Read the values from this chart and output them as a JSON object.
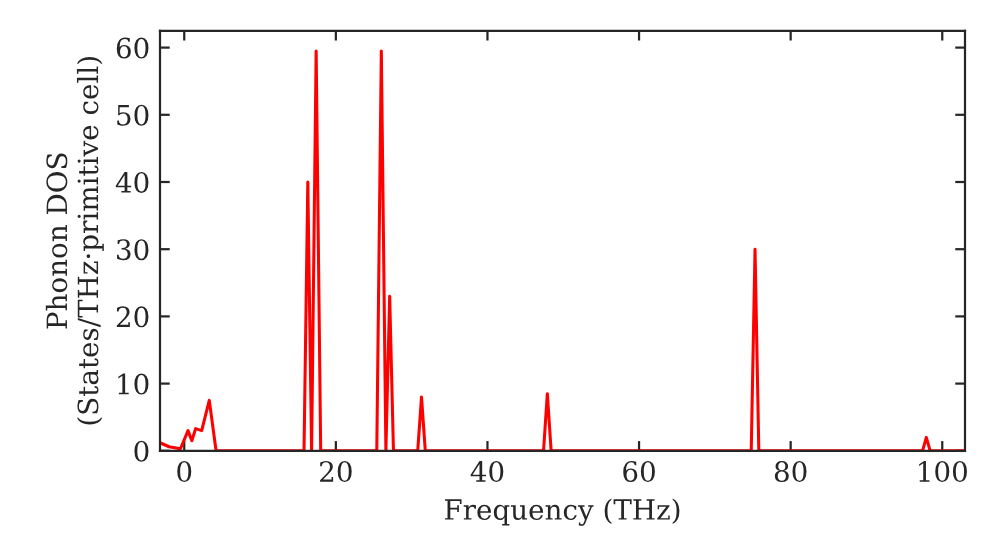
{
  "chart_data": {
    "type": "line",
    "xlabel": "Frequency (THz)",
    "ylabel": "Phonon DOS\n(States/THz·primitive cell)",
    "x": [
      -3.2,
      -2,
      -0.5,
      0.5,
      1,
      1.5,
      2.3,
      3.3,
      4.2,
      5.3,
      15.8,
      16.3,
      16.8,
      17.4,
      18.0,
      25.4,
      26.0,
      26.6,
      27.1,
      27.6,
      30.8,
      31.3,
      31.8,
      47.4,
      47.9,
      48.4,
      74.8,
      75.3,
      75.8,
      97.4,
      97.9,
      98.4,
      103
    ],
    "series": [
      {
        "color": "#ff0000",
        "values": [
          1.2,
          0.6,
          0.3,
          3,
          1.5,
          3.3,
          3,
          7.5,
          0,
          0,
          0,
          40,
          0,
          59.5,
          0,
          0,
          59.5,
          0,
          23,
          0,
          0,
          8,
          0,
          0,
          8.5,
          0,
          0,
          30,
          0,
          0,
          2,
          0,
          0
        ]
      }
    ],
    "xlim": [
      -3.2,
      103
    ],
    "ylim": [
      0,
      62.5
    ],
    "xticks": [
      0,
      20,
      40,
      60,
      80,
      100
    ],
    "yticks": [
      0,
      10,
      20,
      30,
      40,
      50,
      60
    ],
    "grid": false
  }
}
